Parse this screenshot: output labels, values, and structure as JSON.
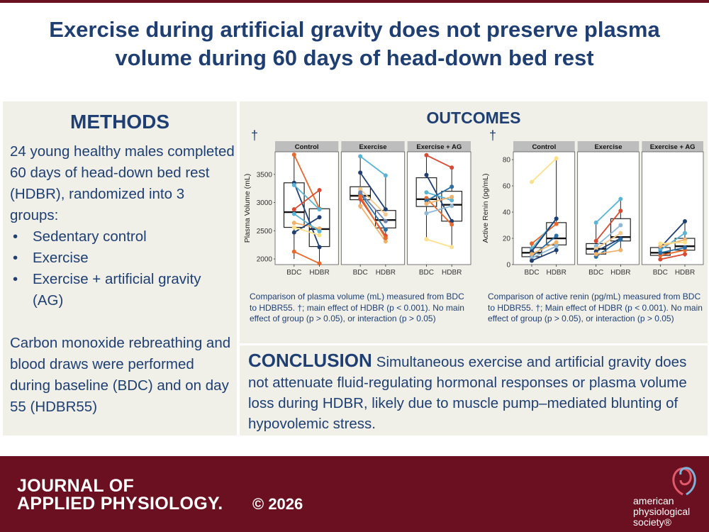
{
  "title": "Exercise during artificial gravity does not preserve plasma volume during 60 days of head-down bed rest",
  "methods": {
    "heading": "METHODS",
    "intro": "24 young healthy males completed 60 days of head-down bed rest (HDBR), randomized into 3 groups:",
    "groups": [
      "Sedentary control",
      "Exercise",
      "Exercise + artificial gravity (AG)"
    ],
    "procedure": "Carbon monoxide rebreathing and blood draws were performed during baseline (BDC) and on day 55 (HDBR55)"
  },
  "outcomes": {
    "heading": "OUTCOMES",
    "dagger": "†",
    "plasma_caption": "Comparison of plasma volume (mL) measured from BDC to HDBR55. †; main effect of HDBR (p < 0.001). No main effect of group (p > 0.05), or interaction (p > 0.05)",
    "renin_caption": "Comparison of active renin (pg/mL) measured from BDC to HDBR55. †; Main effect of HDBR (p < 0.001). No main effect of group (p > 0.05), or interaction (p > 0.05)"
  },
  "conclusion": {
    "label": "CONCLUSION",
    "text": "Simultaneous exercise and artificial gravity does not attenuate fluid-regulating hormonal responses or plasma volume loss during HDBR, likely due to muscle pump–mediated blunting of hypovolemic stress."
  },
  "footer": {
    "journal_line1": "JOURNAL OF",
    "journal_line2": "APPLIED PHYSIOLOGY.",
    "copyright": "© 2026",
    "society_line1": "american",
    "society_line2": "physiological",
    "society_line3": "society®"
  },
  "colors": {
    "navy": "#1f3f73",
    "maroon": "#6b1020",
    "panel": "#f0f0e9",
    "facet_header": "#bdbdbd"
  },
  "chart_data": [
    {
      "type": "box",
      "ylabel": "Plasma Volume (mL)",
      "ylim": [
        1900,
        3900
      ],
      "yticks": [
        2000,
        2500,
        3000,
        3500
      ],
      "categories": [
        "BDC",
        "HDBR"
      ],
      "facets": [
        "Control",
        "Exercise",
        "Exercise + AG"
      ],
      "panels": [
        {
          "box": [
            {
              "min": 2000,
              "q1": 2560,
              "med": 2830,
              "q3": 3350,
              "max": 3850
            },
            {
              "min": 1900,
              "q1": 2220,
              "med": 2530,
              "q3": 2890,
              "max": 3220
            }
          ],
          "lines": [
            {
              "color": "#e8692b",
              "values": [
                3850,
                2890
              ]
            },
            {
              "color": "#1f3f73",
              "values": [
                3350,
                2210
              ]
            },
            {
              "color": "#5ab4d6",
              "values": [
                3310,
                2880
              ]
            },
            {
              "color": "#f0b26b",
              "values": [
                2640,
                2540
              ]
            },
            {
              "color": "#5ab4d6",
              "values": [
                2800,
                2490
              ]
            },
            {
              "color": "#1f3f73",
              "values": [
                2470,
                2740
              ]
            },
            {
              "color": "#e8692b",
              "values": [
                2130,
                1920
              ]
            },
            {
              "color": "#d84b32",
              "values": [
                2880,
                3220
              ]
            },
            {
              "color": "#fde08a",
              "values": [
                2560,
                2420
              ]
            }
          ]
        },
        {
          "box": [
            {
              "min": 2890,
              "q1": 3050,
              "med": 3120,
              "q3": 3280,
              "max": 3820
            },
            {
              "min": 2370,
              "q1": 2550,
              "med": 2690,
              "q3": 2860,
              "max": 3480
            }
          ],
          "lines": [
            {
              "color": "#5ab4d6",
              "values": [
                3820,
                3480
              ]
            },
            {
              "color": "#1f3f73",
              "values": [
                3530,
                2880
              ]
            },
            {
              "color": "#2a6fa6",
              "values": [
                3160,
                2520
              ]
            },
            {
              "color": "#d84b32",
              "values": [
                3060,
                2410
              ]
            },
            {
              "color": "#f0b26b",
              "values": [
                2940,
                2310
              ]
            },
            {
              "color": "#f3c98d",
              "values": [
                3240,
                2790
              ]
            },
            {
              "color": "#e8692b",
              "values": [
                3110,
                2370
              ]
            },
            {
              "color": "#6f86b3",
              "values": [
                3180,
                2670
              ]
            }
          ]
        },
        {
          "box": [
            {
              "min": 2350,
              "q1": 2930,
              "med": 3060,
              "q3": 3440,
              "max": 3840
            },
            {
              "min": 2210,
              "q1": 2670,
              "med": 2960,
              "q3": 3200,
              "max": 3650
            }
          ],
          "lines": [
            {
              "color": "#d84b32",
              "values": [
                3840,
                3620
              ]
            },
            {
              "color": "#1f3f73",
              "values": [
                3490,
                2670
              ]
            },
            {
              "color": "#5ab4d6",
              "values": [
                3180,
                3040
              ]
            },
            {
              "color": "#fde08a",
              "values": [
                2350,
                2210
              ]
            },
            {
              "color": "#e8692b",
              "values": [
                3080,
                2610
              ]
            },
            {
              "color": "#2a6fa6",
              "values": [
                3030,
                3280
              ]
            },
            {
              "color": "#f0b26b",
              "values": [
                2980,
                3100
              ]
            },
            {
              "color": "#8fb9d6",
              "values": [
                2810,
                2940
              ]
            }
          ]
        }
      ]
    },
    {
      "type": "box",
      "ylabel": "Active Renin (pg/mL)",
      "ylim": [
        0,
        86
      ],
      "yticks": [
        0,
        20,
        40,
        60,
        80
      ],
      "categories": [
        "BDC",
        "HDBR"
      ],
      "facets": [
        "Control",
        "Exercise",
        "Exercise + AG"
      ],
      "panels": [
        {
          "box": [
            {
              "min": 2,
              "q1": 6,
              "med": 9,
              "q3": 13,
              "max": 16
            },
            {
              "min": 8,
              "q1": 15,
              "med": 20,
              "q3": 32,
              "max": 81
            }
          ],
          "lines": [
            {
              "color": "#fde08a",
              "values": [
                63,
                81
              ]
            },
            {
              "color": "#e8692b",
              "values": [
                16,
                31
              ]
            },
            {
              "color": "#5ab4d6",
              "values": [
                12,
                35
              ]
            },
            {
              "color": "#1f3f73",
              "values": [
                10,
                35
              ]
            },
            {
              "color": "#2a6fa6",
              "values": [
                6,
                22
              ]
            },
            {
              "color": "#f0b26b",
              "values": [
                8,
                17
              ]
            },
            {
              "color": "#8fb9d6",
              "values": [
                5,
                14
              ]
            },
            {
              "color": "#1f3f73",
              "values": [
                3,
                11
              ]
            }
          ]
        },
        {
          "box": [
            {
              "min": 5,
              "q1": 8,
              "med": 12,
              "q3": 16,
              "max": 32
            },
            {
              "min": 10,
              "q1": 18,
              "med": 21,
              "q3": 35,
              "max": 50
            }
          ],
          "lines": [
            {
              "color": "#5ab4d6",
              "values": [
                32,
                50
              ]
            },
            {
              "color": "#d84b32",
              "values": [
                18,
                41
              ]
            },
            {
              "color": "#8fb9d6",
              "values": [
                14,
                30
              ]
            },
            {
              "color": "#f3c98d",
              "values": [
                12,
                24
              ]
            },
            {
              "color": "#1f3f73",
              "values": [
                10,
                20
              ]
            },
            {
              "color": "#2a6fa6",
              "values": [
                6,
                19
              ]
            },
            {
              "color": "#f0b26b",
              "values": [
                8,
                11
              ]
            }
          ]
        },
        {
          "box": [
            {
              "min": 3,
              "q1": 7,
              "med": 9,
              "q3": 13,
              "max": 17
            },
            {
              "min": 6,
              "q1": 11,
              "med": 14,
              "q3": 20,
              "max": 33
            }
          ],
          "lines": [
            {
              "color": "#1f3f73",
              "values": [
                13,
                33
              ]
            },
            {
              "color": "#5ab4d6",
              "values": [
                11,
                24
              ]
            },
            {
              "color": "#f0b26b",
              "values": [
                14,
                19
              ]
            },
            {
              "color": "#fde08a",
              "values": [
                16,
                17
              ]
            },
            {
              "color": "#e8692b",
              "values": [
                7,
                11
              ]
            },
            {
              "color": "#d84b32",
              "values": [
                4,
                8
              ]
            },
            {
              "color": "#2a6fa6",
              "values": [
                9,
                13
              ]
            }
          ]
        }
      ]
    }
  ]
}
